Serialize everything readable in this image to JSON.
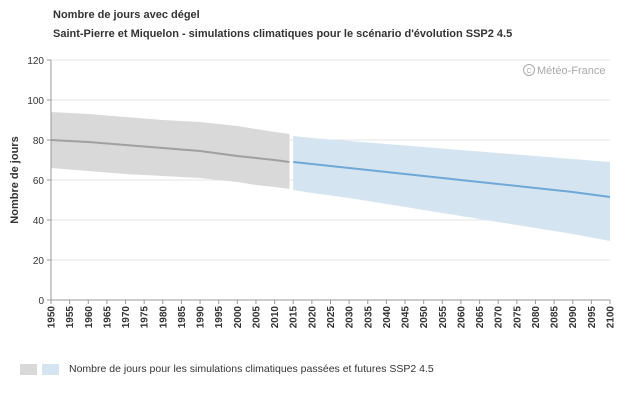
{
  "title": "Nombre de jours avec dégel",
  "subtitle": "Saint-Pierre et Miquelon - simulations climatiques pour le scénario d'évolution SSP2 4.5",
  "watermark": "Météo-France",
  "legend_label": "Nombre de jours pour les simulations climatiques passées et futures SSP2 4.5",
  "colors": {
    "historical_band": "#d9d9d9",
    "historical_line": "#a0a0a0",
    "future_band": "#d4e5f1",
    "future_line": "#6fa8d6",
    "grid": "#e4e4e4",
    "axis": "#999999"
  },
  "chart_data": {
    "type": "area",
    "ylabel": "Nombre de jours",
    "xlabel": "",
    "ylim": [
      0,
      120
    ],
    "yticks": [
      0,
      20,
      40,
      60,
      80,
      100,
      120
    ],
    "xlim": [
      1950,
      2100
    ],
    "xticks": [
      1950,
      1955,
      1960,
      1965,
      1970,
      1975,
      1980,
      1985,
      1990,
      1995,
      2000,
      2005,
      2010,
      2015,
      2020,
      2025,
      2030,
      2035,
      2040,
      2045,
      2050,
      2055,
      2060,
      2065,
      2070,
      2075,
      2080,
      2085,
      2090,
      2095,
      2100
    ],
    "grid": true,
    "legend_position": "bottom-left",
    "series": [
      {
        "period": "historical",
        "x": [
          1950,
          1960,
          1970,
          1980,
          1990,
          2000,
          2005,
          2010,
          2014
        ],
        "median": [
          80,
          79,
          77.5,
          76,
          74.5,
          72,
          71,
          70,
          69
        ],
        "low": [
          66,
          64.5,
          63,
          62,
          61,
          59,
          57.5,
          56.5,
          55.5
        ],
        "high": [
          94,
          93,
          91.5,
          90,
          89,
          87,
          85.5,
          84,
          83
        ]
      },
      {
        "period": "future",
        "x": [
          2015,
          2020,
          2030,
          2040,
          2050,
          2060,
          2070,
          2080,
          2090,
          2100
        ],
        "median": [
          69,
          68,
          66,
          64,
          62,
          60,
          58,
          56,
          54,
          51.5
        ],
        "low": [
          55,
          53.5,
          51,
          48,
          45,
          42,
          39,
          36,
          33,
          29.5
        ],
        "high": [
          82,
          81,
          79.5,
          78,
          76.5,
          75,
          73.5,
          72,
          70.5,
          69
        ]
      }
    ]
  }
}
